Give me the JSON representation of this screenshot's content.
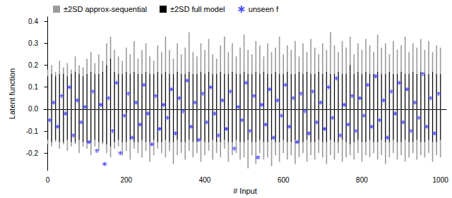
{
  "chart_data": {
    "type": "band_scatter",
    "x_label": "# Input",
    "y_label": "Latent function",
    "xlim": [
      -10,
      1015
    ],
    "xticks": [
      0,
      200,
      400,
      600,
      800,
      1000
    ],
    "ylim": [
      -0.28,
      0.42
    ],
    "yticks": [
      -0.2,
      -0.1,
      {
        "value": 0,
        "label": "0.0"
      },
      0.1,
      0.2,
      0.3,
      0.4
    ],
    "legend": "upper left",
    "series": [
      {
        "name": "±2SD approx-sequential",
        "type": "band",
        "color": "#9a9a9a",
        "x": [
          0,
          10,
          20,
          30,
          40,
          50,
          60,
          70,
          80,
          90,
          100,
          110,
          120,
          130,
          140,
          150,
          160,
          170,
          180,
          190,
          200,
          210,
          220,
          230,
          240,
          250,
          260,
          270,
          280,
          290,
          300,
          310,
          320,
          330,
          340,
          350,
          360,
          370,
          380,
          390,
          400,
          410,
          420,
          430,
          440,
          450,
          460,
          470,
          480,
          490,
          500,
          510,
          520,
          530,
          540,
          550,
          560,
          570,
          580,
          590,
          600,
          610,
          620,
          630,
          640,
          650,
          660,
          670,
          680,
          690,
          700,
          710,
          720,
          730,
          740,
          750,
          760,
          770,
          780,
          790,
          800,
          810,
          820,
          830,
          840,
          850,
          860,
          870,
          880,
          890,
          900,
          910,
          920,
          930,
          940,
          950,
          960,
          970,
          980,
          990,
          1000
        ],
        "lower": [
          -0.16,
          -0.17,
          -0.15,
          -0.18,
          -0.16,
          -0.19,
          -0.17,
          -0.16,
          -0.2,
          -0.17,
          -0.18,
          -0.21,
          -0.17,
          -0.19,
          -0.16,
          -0.2,
          -0.22,
          -0.18,
          -0.17,
          -0.21,
          -0.19,
          -0.23,
          -0.18,
          -0.2,
          -0.22,
          -0.19,
          -0.24,
          -0.21,
          -0.18,
          -0.2,
          -0.22,
          -0.19,
          -0.25,
          -0.21,
          -0.2,
          -0.23,
          -0.19,
          -0.22,
          -0.2,
          -0.24,
          -0.21,
          -0.19,
          -0.23,
          -0.2,
          -0.22,
          -0.18,
          -0.24,
          -0.21,
          -0.2,
          -0.23,
          -0.22,
          -0.27,
          -0.21,
          -0.25,
          -0.2,
          -0.23,
          -0.22,
          -0.26,
          -0.21,
          -0.24,
          -0.2,
          -0.23,
          -0.21,
          -0.25,
          -0.22,
          -0.2,
          -0.24,
          -0.21,
          -0.23,
          -0.2,
          -0.22,
          -0.25,
          -0.21,
          -0.23,
          -0.2,
          -0.24,
          -0.22,
          -0.21,
          -0.23,
          -0.2,
          -0.24,
          -0.21,
          -0.22,
          -0.2,
          -0.23,
          -0.21,
          -0.25,
          -0.22,
          -0.2,
          -0.23,
          -0.21,
          -0.24,
          -0.22,
          -0.2,
          -0.23,
          -0.21,
          -0.22,
          -0.2,
          -0.24,
          -0.21,
          -0.22
        ],
        "upper": [
          0.18,
          0.2,
          0.17,
          0.22,
          0.19,
          0.21,
          0.18,
          0.24,
          0.2,
          0.19,
          0.23,
          0.26,
          0.21,
          0.25,
          0.22,
          0.3,
          0.33,
          0.27,
          0.24,
          0.22,
          0.28,
          0.25,
          0.31,
          0.23,
          0.27,
          0.3,
          0.24,
          0.22,
          0.29,
          0.26,
          0.33,
          0.27,
          0.23,
          0.3,
          0.25,
          0.28,
          0.35,
          0.26,
          0.24,
          0.3,
          0.27,
          0.32,
          0.25,
          0.23,
          0.29,
          0.33,
          0.26,
          0.3,
          0.24,
          0.28,
          0.34,
          0.27,
          0.25,
          0.31,
          0.29,
          0.24,
          0.3,
          0.26,
          0.28,
          0.33,
          0.25,
          0.29,
          0.27,
          0.31,
          0.24,
          0.3,
          0.26,
          0.32,
          0.28,
          0.25,
          0.3,
          0.27,
          0.35,
          0.29,
          0.26,
          0.31,
          0.28,
          0.33,
          0.25,
          0.3,
          0.27,
          0.32,
          0.29,
          0.26,
          0.34,
          0.28,
          0.3,
          0.25,
          0.31,
          0.27,
          0.29,
          0.33,
          0.26,
          0.3,
          0.28,
          0.32,
          0.27,
          0.31,
          0.26,
          0.29,
          0.28
        ]
      },
      {
        "name": "±2SD full model",
        "type": "band",
        "color": "#000000",
        "x": [
          0,
          10,
          20,
          30,
          40,
          50,
          60,
          70,
          80,
          90,
          100,
          110,
          120,
          130,
          140,
          150,
          160,
          170,
          180,
          190,
          200,
          210,
          220,
          230,
          240,
          250,
          260,
          270,
          280,
          290,
          300,
          310,
          320,
          330,
          340,
          350,
          360,
          370,
          380,
          390,
          400,
          410,
          420,
          430,
          440,
          450,
          460,
          470,
          480,
          490,
          500,
          510,
          520,
          530,
          540,
          550,
          560,
          570,
          580,
          590,
          600,
          610,
          620,
          630,
          640,
          650,
          660,
          670,
          680,
          690,
          700,
          710,
          720,
          730,
          740,
          750,
          760,
          770,
          780,
          790,
          800,
          810,
          820,
          830,
          840,
          850,
          860,
          870,
          880,
          890,
          900,
          910,
          920,
          930,
          940,
          950,
          960,
          970,
          980,
          990,
          1000
        ],
        "lower": [
          -0.14,
          -0.15,
          -0.14,
          -0.15,
          -0.15,
          -0.14,
          -0.15,
          -0.15,
          -0.14,
          -0.15,
          -0.15,
          -0.15,
          -0.14,
          -0.15,
          -0.15,
          -0.16,
          -0.17,
          -0.15,
          -0.14,
          -0.15,
          -0.15,
          -0.14,
          -0.15,
          -0.15,
          -0.14,
          -0.15,
          -0.15,
          -0.14,
          -0.15,
          -0.15,
          -0.14,
          -0.15,
          -0.15,
          -0.14,
          -0.15,
          -0.15,
          -0.14,
          -0.15,
          -0.15,
          -0.14,
          -0.15,
          -0.15,
          -0.14,
          -0.15,
          -0.15,
          -0.14,
          -0.15,
          -0.15,
          -0.14,
          -0.15,
          -0.15,
          -0.14,
          -0.15,
          -0.15,
          -0.14,
          -0.15,
          -0.15,
          -0.14,
          -0.15,
          -0.15,
          -0.14,
          -0.15,
          -0.15,
          -0.14,
          -0.15,
          -0.15,
          -0.14,
          -0.15,
          -0.15,
          -0.14,
          -0.15,
          -0.15,
          -0.14,
          -0.15,
          -0.15,
          -0.14,
          -0.15,
          -0.16,
          -0.15,
          -0.14,
          -0.15,
          -0.15,
          -0.14,
          -0.15,
          -0.15,
          -0.14,
          -0.15,
          -0.15,
          -0.14,
          -0.15,
          -0.15,
          -0.14,
          -0.15,
          -0.15,
          -0.14,
          -0.15,
          -0.15,
          -0.14,
          -0.15,
          -0.15,
          -0.14
        ],
        "upper": [
          0.15,
          0.16,
          0.15,
          0.16,
          0.16,
          0.15,
          0.16,
          0.17,
          0.16,
          0.15,
          0.16,
          0.17,
          0.16,
          0.16,
          0.17,
          0.2,
          0.23,
          0.17,
          0.16,
          0.16,
          0.17,
          0.16,
          0.17,
          0.16,
          0.16,
          0.17,
          0.16,
          0.16,
          0.17,
          0.16,
          0.17,
          0.16,
          0.16,
          0.17,
          0.16,
          0.16,
          0.17,
          0.16,
          0.16,
          0.17,
          0.16,
          0.17,
          0.16,
          0.16,
          0.17,
          0.16,
          0.16,
          0.17,
          0.16,
          0.16,
          0.17,
          0.16,
          0.16,
          0.17,
          0.16,
          0.17,
          0.16,
          0.16,
          0.17,
          0.16,
          0.16,
          0.17,
          0.16,
          0.16,
          0.17,
          0.16,
          0.17,
          0.16,
          0.16,
          0.17,
          0.16,
          0.17,
          0.16,
          0.16,
          0.17,
          0.16,
          0.16,
          0.2,
          0.16,
          0.17,
          0.16,
          0.17,
          0.16,
          0.16,
          0.17,
          0.16,
          0.16,
          0.17,
          0.16,
          0.16,
          0.17,
          0.16,
          0.16,
          0.17,
          0.16,
          0.17,
          0.16,
          0.16,
          0.17,
          0.16,
          0.16
        ]
      },
      {
        "name": "unseen f",
        "type": "scatter",
        "color": "#1f1fff",
        "marker": "asterisk",
        "x": [
          5,
          15,
          25,
          35,
          45,
          55,
          65,
          75,
          85,
          95,
          105,
          115,
          125,
          135,
          145,
          155,
          165,
          175,
          185,
          195,
          205,
          215,
          225,
          235,
          245,
          255,
          265,
          275,
          285,
          295,
          305,
          315,
          325,
          335,
          345,
          355,
          365,
          375,
          385,
          395,
          405,
          415,
          425,
          435,
          445,
          455,
          465,
          475,
          485,
          495,
          505,
          515,
          525,
          535,
          545,
          555,
          565,
          575,
          585,
          595,
          605,
          615,
          625,
          635,
          645,
          655,
          665,
          675,
          685,
          695,
          705,
          715,
          725,
          735,
          745,
          755,
          765,
          775,
          785,
          795,
          805,
          815,
          825,
          835,
          845,
          855,
          865,
          875,
          885,
          895,
          905,
          915,
          925,
          935,
          945,
          955,
          965,
          975,
          985,
          995
        ],
        "values": [
          -0.05,
          0.03,
          -0.08,
          0.06,
          -0.02,
          0.1,
          -0.12,
          0.04,
          -0.06,
          0.01,
          -0.15,
          0.08,
          -0.19,
          0.02,
          -0.25,
          0.05,
          -0.1,
          0.12,
          -0.2,
          -0.03,
          0.07,
          -0.13,
          0.03,
          -0.07,
          0.11,
          -0.02,
          -0.16,
          0.06,
          -0.09,
          0.02,
          -0.04,
          0.09,
          -0.11,
          0.05,
          -0.01,
          0.13,
          -0.08,
          0.03,
          -0.14,
          0.07,
          -0.06,
          0.1,
          -0.02,
          -0.12,
          0.04,
          -0.09,
          0.08,
          -0.18,
          0.01,
          -0.05,
          0.12,
          -0.1,
          0.06,
          -0.22,
          0.02,
          -0.07,
          0.09,
          -0.13,
          0.04,
          -0.03,
          0.11,
          -0.08,
          0.05,
          -0.15,
          0.07,
          -0.01,
          -0.11,
          0.08,
          -0.06,
          0.03,
          -0.09,
          0.1,
          -0.04,
          0.14,
          -0.12,
          0.02,
          -0.07,
          0.06,
          -0.1,
          0.05,
          -0.03,
          0.11,
          -0.08,
          0.15,
          -0.05,
          0.04,
          -0.13,
          0.08,
          -0.02,
          0.12,
          -0.06,
          0.09,
          -0.1,
          0.03,
          -0.04,
          0.16,
          -0.08,
          0.05,
          -0.11,
          0.07
        ]
      }
    ]
  }
}
